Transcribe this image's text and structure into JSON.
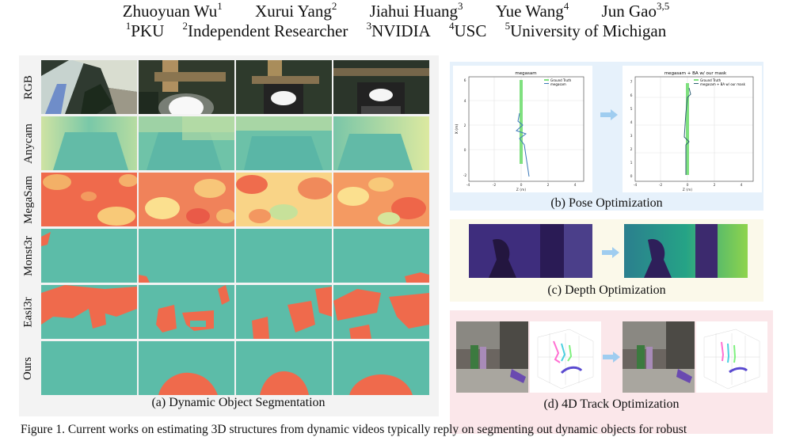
{
  "authors": [
    {
      "name": "Zhuoyuan Wu",
      "sup": "1"
    },
    {
      "name": "Xurui Yang",
      "sup": "2"
    },
    {
      "name": "Jiahui Huang",
      "sup": "3"
    },
    {
      "name": "Yue Wang",
      "sup": "4"
    },
    {
      "name": "Jun Gao",
      "sup": "3,5"
    }
  ],
  "affiliations": [
    {
      "sup": "1",
      "name": "PKU"
    },
    {
      "sup": "2",
      "name": "Independent Researcher"
    },
    {
      "sup": "3",
      "name": "NVIDIA"
    },
    {
      "sup": "4",
      "name": "USC"
    },
    {
      "sup": "5",
      "name": "University of Michigan"
    }
  ],
  "panel_a": {
    "rows": [
      "RGB",
      "Anycam",
      "MegaSam",
      "Monst3r",
      "Easi3r",
      "Ours"
    ],
    "caption": "(a) Dynamic Object Segmentation"
  },
  "panel_b": {
    "caption": "(b) Pose Optimization",
    "left_plot": {
      "title": "megasam",
      "legend": [
        "Ground Truth",
        "megasam"
      ],
      "xlabel": "Z (m)",
      "ylabel": "X (m)",
      "xticks": [
        "-4",
        "-2",
        "0",
        "2",
        "4"
      ],
      "yticks": [
        "-2",
        "0",
        "2",
        "4",
        "6"
      ]
    },
    "right_plot": {
      "title": "megasam + BA w/ our mask",
      "legend": [
        "Ground Truth",
        "megasam + BA w/ our mask"
      ],
      "xlabel": "Z (m)",
      "xticks": [
        "-4",
        "-2",
        "0",
        "2",
        "4"
      ],
      "yticks": [
        "0",
        "1",
        "2",
        "3",
        "4",
        "5",
        "6",
        "7"
      ]
    }
  },
  "panel_c": {
    "caption": "(c) Depth Optimization"
  },
  "panel_d": {
    "caption": "(d) 4D Track Optimization"
  },
  "figure_caption": "Figure 1.  Current works on estimating 3D structures from dynamic videos typically reply on segmenting out dynamic objects for robust",
  "colors": {
    "mask_static": "#5cbca8",
    "mask_dynamic": "#ef6a4c",
    "panel_b_bg": "#e6f1fb",
    "panel_c_bg": "#fbf9ea",
    "panel_d_bg": "#fbe7ea",
    "arrow": "#9fcdf0"
  }
}
